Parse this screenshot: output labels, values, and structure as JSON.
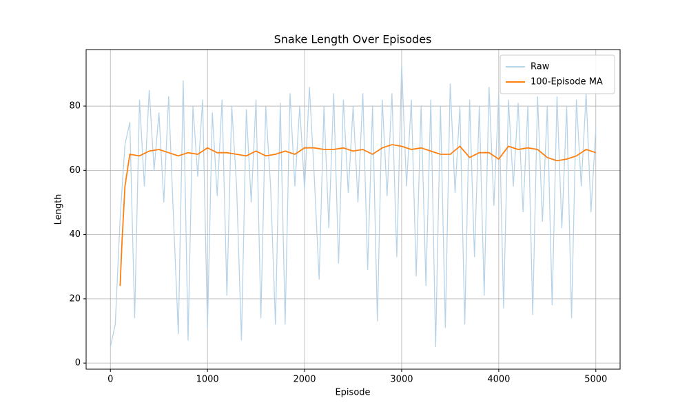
{
  "chart_data": {
    "type": "line",
    "title": "Snake Length Over Episodes",
    "xlabel": "Episode",
    "ylabel": "Length",
    "xlim": [
      -250,
      5250
    ],
    "ylim": [
      -1.9,
      97.6
    ],
    "xticks": [
      0,
      1000,
      2000,
      3000,
      4000,
      5000
    ],
    "yticks": [
      0,
      20,
      40,
      60,
      80
    ],
    "grid": true,
    "legend": "upper right",
    "series": [
      {
        "name": "Raw",
        "color": "#b6d3e8",
        "x": [
          0,
          50,
          100,
          150,
          200,
          250,
          300,
          350,
          400,
          450,
          500,
          550,
          600,
          650,
          700,
          750,
          800,
          850,
          900,
          950,
          1000,
          1050,
          1100,
          1150,
          1200,
          1250,
          1300,
          1350,
          1400,
          1450,
          1500,
          1550,
          1600,
          1650,
          1700,
          1750,
          1800,
          1850,
          1900,
          1950,
          2000,
          2050,
          2100,
          2150,
          2200,
          2250,
          2300,
          2350,
          2400,
          2450,
          2500,
          2550,
          2600,
          2650,
          2700,
          2750,
          2800,
          2850,
          2900,
          2950,
          3000,
          3050,
          3100,
          3150,
          3200,
          3250,
          3300,
          3350,
          3400,
          3450,
          3500,
          3550,
          3600,
          3650,
          3700,
          3750,
          3800,
          3850,
          3900,
          3950,
          4000,
          4050,
          4100,
          4150,
          4200,
          4250,
          4300,
          4350,
          4400,
          4450,
          4500,
          4550,
          4600,
          4650,
          4700,
          4750,
          4800,
          4850,
          4900,
          4950,
          5000
        ],
        "values": [
          5,
          12,
          45,
          68,
          75,
          14,
          82,
          55,
          85,
          60,
          78,
          50,
          83,
          45,
          9,
          88,
          7,
          80,
          58,
          82,
          11,
          78,
          52,
          82,
          21,
          80,
          55,
          7,
          79,
          50,
          82,
          14,
          80,
          55,
          12,
          81,
          12,
          84,
          55,
          80,
          54,
          86,
          58,
          26,
          80,
          42,
          84,
          31,
          82,
          53,
          80,
          50,
          84,
          29,
          80,
          13,
          82,
          52,
          84,
          33,
          93,
          55,
          82,
          27,
          80,
          24,
          82,
          5,
          80,
          11,
          87,
          53,
          80,
          12,
          82,
          33,
          80,
          21,
          86,
          49,
          84,
          17,
          82,
          55,
          81,
          47,
          80,
          15,
          83,
          44,
          80,
          18,
          83,
          42,
          80,
          14,
          82,
          55,
          84,
          47,
          73
        ]
      },
      {
        "name": "100-Episode MA",
        "color": "#ff7f0e",
        "x": [
          100,
          120,
          150,
          200,
          300,
          400,
          500,
          600,
          700,
          800,
          900,
          1000,
          1100,
          1200,
          1300,
          1400,
          1500,
          1600,
          1700,
          1800,
          1900,
          2000,
          2100,
          2200,
          2300,
          2400,
          2500,
          2600,
          2700,
          2800,
          2900,
          3000,
          3100,
          3200,
          3300,
          3400,
          3500,
          3600,
          3700,
          3800,
          3900,
          4000,
          4100,
          4200,
          4300,
          4400,
          4500,
          4600,
          4700,
          4800,
          4900,
          5000
        ],
        "values": [
          24,
          38,
          55,
          65,
          64.5,
          66,
          66.5,
          65.5,
          64.5,
          65.5,
          65,
          67,
          65.5,
          65.5,
          65,
          64.5,
          66,
          64.5,
          65,
          66,
          65,
          67,
          67,
          66.5,
          66.5,
          67,
          66,
          66.5,
          65,
          67,
          68,
          67.5,
          66.5,
          67,
          66,
          65,
          65,
          67.5,
          64,
          65.5,
          65.5,
          63.5,
          67.5,
          66.5,
          67,
          66.5,
          64,
          63,
          63.5,
          64.5,
          66.5,
          65.5
        ]
      }
    ]
  }
}
